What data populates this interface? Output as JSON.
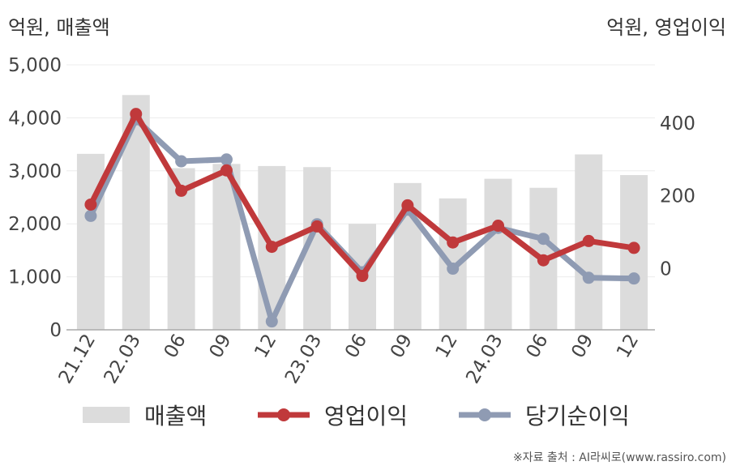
{
  "chart_data": {
    "type": "bar+line",
    "categories": [
      "21.12",
      "22.03",
      "06",
      "09",
      "12",
      "23.03",
      "06",
      "09",
      "12",
      "24.03",
      "06",
      "09",
      "12"
    ],
    "left_axis": {
      "label": "억원, 매출액",
      "ticks": [
        0,
        1000,
        2000,
        3000,
        4000,
        5000
      ],
      "tick_labels": [
        "0",
        "1,000",
        "2,000",
        "3,000",
        "4,000",
        "5,000"
      ],
      "ylim": [
        0,
        5000
      ]
    },
    "right_axis": {
      "label": "억원, 영업이익",
      "ticks": [
        0,
        200,
        400
      ],
      "tick_labels": [
        "0",
        "200",
        "400"
      ],
      "ylim": [
        -168,
        560
      ]
    },
    "series": [
      {
        "name": "매출액",
        "kind": "bar",
        "axis": "left",
        "color": "#dcdcdc",
        "values": [
          3320,
          4430,
          3050,
          3130,
          3090,
          3070,
          2000,
          2770,
          2480,
          2850,
          2680,
          3310,
          2920
        ]
      },
      {
        "name": "영업이익",
        "kind": "line",
        "axis": "right",
        "color": "#c0393b",
        "values": [
          176,
          425,
          214,
          270,
          60,
          116,
          -20,
          174,
          72,
          118,
          23,
          76,
          57
        ]
      },
      {
        "name": "당기순이익",
        "kind": "line",
        "axis": "right",
        "color": "#8f9bb3",
        "values": [
          145,
          410,
          295,
          300,
          -145,
          122,
          -10,
          162,
          0,
          112,
          82,
          -25,
          -27
        ]
      }
    ],
    "grid": true,
    "legend": "bottom"
  },
  "source": "※자료 출처 : AI라씨로(www.rassiro.com)"
}
